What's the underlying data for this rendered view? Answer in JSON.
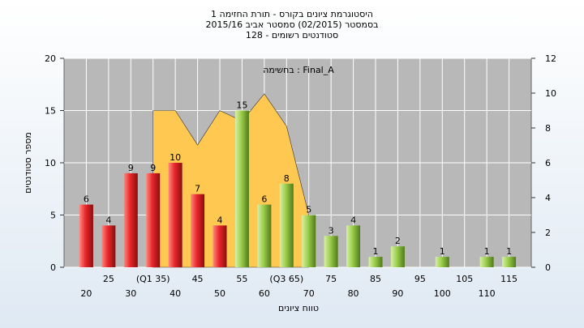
{
  "chart_data": {
    "type": "bar",
    "title_lines": [
      "היסטוגרמת ציונים בקורס - תורת החזימה 1",
      "בסמסטר  (02/2015)  סמסטר אביב 2015/16",
      "סטודנטים רשומים - 128"
    ],
    "xlabel": "טווח ציונים",
    "ylabel": "מספר סטודנטים",
    "legend_text": "בחשימה : Final_A",
    "ylim": [
      0,
      20
    ],
    "y2lim": [
      0,
      12
    ],
    "yticks": [
      0,
      5,
      10,
      15,
      20
    ],
    "y2ticks": [
      0,
      2,
      4,
      6,
      8,
      10,
      12
    ],
    "x_tick_labels_upper": [
      "25",
      "(Q1 35)",
      "45",
      "55",
      "(Q3 65)",
      "75",
      "85",
      "95",
      "105",
      "115"
    ],
    "x_tick_labels_lower": [
      "20",
      "30",
      "40",
      "50",
      "60",
      "70",
      "80",
      "90",
      "100",
      "110"
    ],
    "categories": [
      20,
      25,
      30,
      35,
      40,
      45,
      50,
      55,
      60,
      65,
      70,
      75,
      80,
      85,
      90,
      95,
      100,
      105,
      110,
      115
    ],
    "values": [
      6,
      4,
      9,
      9,
      10,
      7,
      4,
      15,
      6,
      8,
      5,
      3,
      4,
      1,
      2,
      0,
      1,
      0,
      1,
      1
    ],
    "bar_colors": [
      "red",
      "red",
      "red",
      "red",
      "red",
      "red",
      "red",
      "green",
      "green",
      "green",
      "green",
      "green",
      "green",
      "green",
      "green",
      "green",
      "green",
      "green",
      "green",
      "green"
    ],
    "area_points": [
      {
        "x": 35,
        "y": 15
      },
      {
        "x": 40,
        "y": 15
      },
      {
        "x": 45,
        "y": 11.7
      },
      {
        "x": 50,
        "y": 15
      },
      {
        "x": 55,
        "y": 14
      },
      {
        "x": 60,
        "y": 16.6
      },
      {
        "x": 65,
        "y": 13.5
      },
      {
        "x": 70,
        "y": 5
      }
    ],
    "grid": true,
    "colors": {
      "plot_bg": "#b8b8b8",
      "red_bar": "#e8262a",
      "green_bar": "#9acd4a",
      "area": "#ffc850",
      "grid": "#ffffff"
    }
  }
}
